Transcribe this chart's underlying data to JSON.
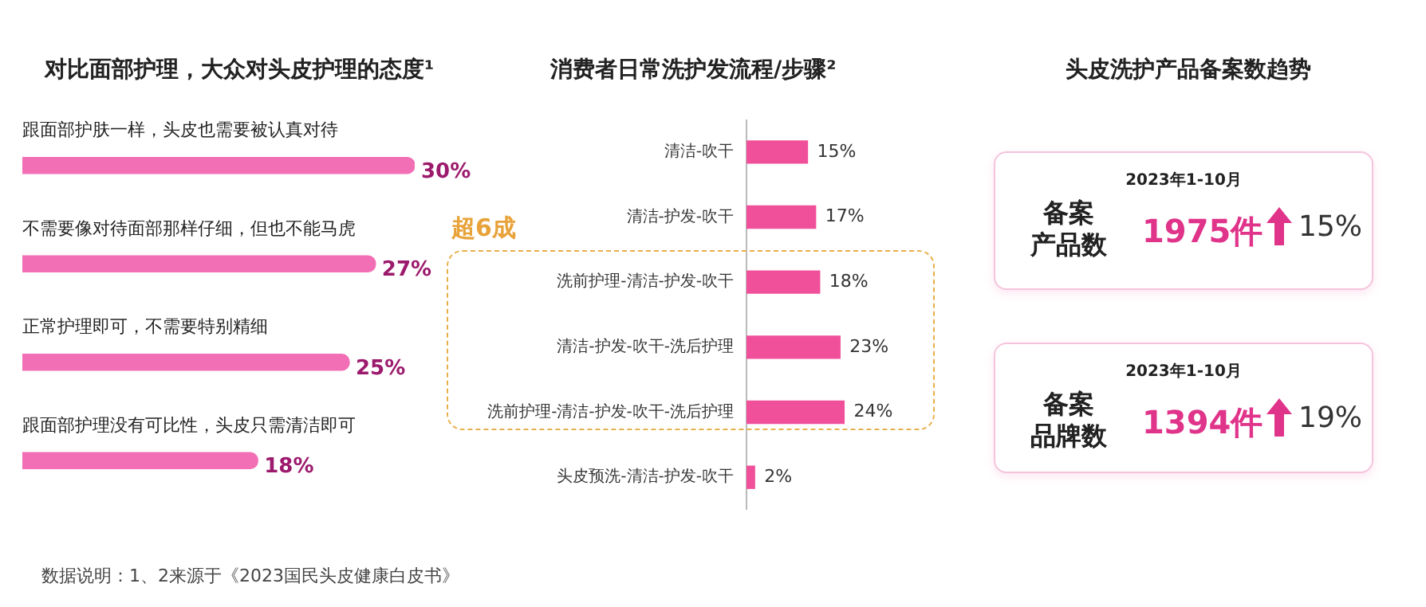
{
  "chart_data": [
    {
      "type": "bar",
      "orientation": "horizontal",
      "title": "对比面部护理，大众对头皮护理的态度¹",
      "categories": [
        "跟面部护肤一样，头皮也需要被认真对待",
        "不需要像对待面部那样仔细，但也不能马虎",
        "正常护理即可，不需要特别精细",
        "跟面部护理没有可比性，头皮只需清洁即可"
      ],
      "values": [
        30,
        27,
        25,
        18
      ],
      "value_labels": [
        "30%",
        "27%",
        "25%",
        "18%"
      ],
      "color": "#f26fb5",
      "tick_labels": "y",
      "annotations": [
        "数据说明：1、2来源于《2023国民头皮健康白皮书》"
      ]
    },
    {
      "type": "bar",
      "orientation": "horizontal",
      "title": "消费者日常洗护发流程/步骤²",
      "categories": [
        "清洁-吹干",
        "清洁-护发-吹干",
        "洗前护理-清洁-护发-吹干",
        "清洁-护发-吹干-洗后护理",
        "洗前护理-清洁-护发-吹干-洗后护理",
        "头皮预洗-清洁-护发-吹干"
      ],
      "values": [
        15,
        17,
        18,
        23,
        24,
        2
      ],
      "value_labels": [
        "15%",
        "17%",
        "18%",
        "23%",
        "24%",
        "2%"
      ],
      "color": "#f0509a",
      "tick_labels": "y",
      "annotations": [
        "超6成"
      ]
    },
    {
      "type": "other",
      "title": "头皮洗护产品备案数趋势",
      "annotations": [
        "2023年1-10月",
        "备案",
        "产品数",
        "1975件",
        "15%",
        "2023年1-10月",
        "备案",
        "品牌数",
        "1394件",
        "19%"
      ]
    }
  ]
}
